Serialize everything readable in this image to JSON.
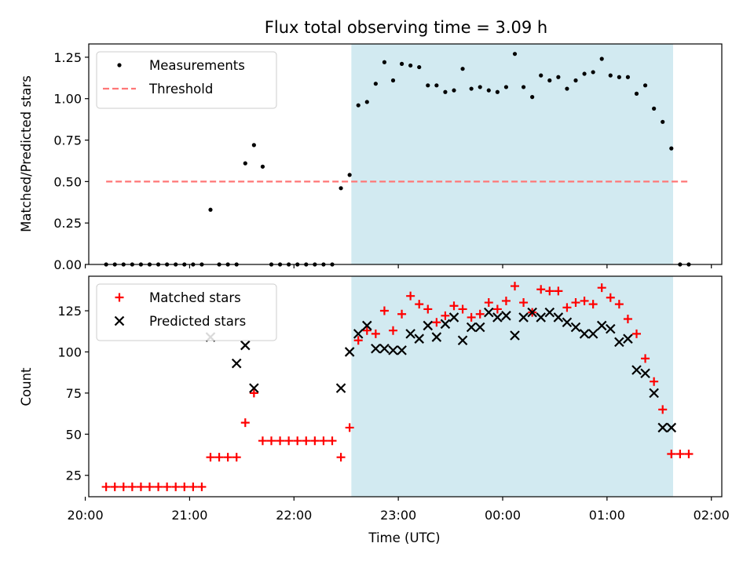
{
  "figure": {
    "title": "Flux total observing time = 3.09 h",
    "xlabel": "Time (UTC)",
    "span": {
      "start": "22:33",
      "end": "01:38",
      "color": "#add8e6"
    },
    "xlim": [
      "20:02",
      "02:06"
    ],
    "xticks": [
      "20:00",
      "21:00",
      "22:00",
      "23:00",
      "00:00",
      "01:00",
      "02:00"
    ]
  },
  "chart_data": [
    {
      "type": "scatter",
      "ylabel": "Matched/Predicted stars",
      "ylim": [
        0,
        1.33
      ],
      "yticks": [
        "0.00",
        "0.25",
        "0.50",
        "0.75",
        "1.00",
        "1.25"
      ],
      "legend": {
        "position": "top-left"
      },
      "threshold": {
        "name": "Threshold",
        "y": 0.5,
        "from": "20:12",
        "to": "01:48",
        "color": "#ff7777"
      },
      "series": [
        {
          "name": "Measurements",
          "marker": "dot",
          "color": "#000000",
          "x": [
            "20:12",
            "20:17",
            "20:22",
            "20:27",
            "20:32",
            "20:37",
            "20:42",
            "20:47",
            "20:52",
            "20:57",
            "21:02",
            "21:07",
            "21:12",
            "21:17",
            "21:22",
            "21:27",
            "21:32",
            "21:37",
            "21:42",
            "21:47",
            "21:52",
            "21:57",
            "22:02",
            "22:07",
            "22:12",
            "22:17",
            "22:22",
            "22:27",
            "22:32",
            "22:37",
            "22:42",
            "22:47",
            "22:52",
            "22:57",
            "23:02",
            "23:07",
            "23:12",
            "23:17",
            "23:22",
            "23:27",
            "23:32",
            "23:37",
            "23:42",
            "23:47",
            "23:52",
            "23:57",
            "00:02",
            "00:07",
            "00:12",
            "00:17",
            "00:22",
            "00:27",
            "00:32",
            "00:37",
            "00:42",
            "00:47",
            "00:52",
            "00:57",
            "01:02",
            "01:07",
            "01:12",
            "01:17",
            "01:22",
            "01:27",
            "01:32",
            "01:37",
            "01:42",
            "01:47"
          ],
          "y": [
            0,
            0,
            0,
            0,
            0,
            0,
            0,
            0,
            0,
            0,
            0,
            0,
            0.33,
            0,
            0,
            0,
            0.61,
            0.72,
            0.59,
            0,
            0,
            0,
            0,
            0,
            0,
            0,
            0,
            0.46,
            0.54,
            0.96,
            0.98,
            1.09,
            1.22,
            1.11,
            1.21,
            1.2,
            1.19,
            1.08,
            1.08,
            1.04,
            1.05,
            1.18,
            1.06,
            1.07,
            1.05,
            1.04,
            1.07,
            1.27,
            1.07,
            1.01,
            1.14,
            1.11,
            1.13,
            1.06,
            1.11,
            1.15,
            1.16,
            1.24,
            1.14,
            1.13,
            1.13,
            1.03,
            1.08,
            0.94,
            0.86,
            0.7,
            0,
            0
          ]
        }
      ]
    },
    {
      "type": "scatter",
      "ylabel": "Count",
      "ylim": [
        12,
        146
      ],
      "yticks": [
        "25",
        "50",
        "75",
        "100",
        "125"
      ],
      "legend": {
        "position": "top-left"
      },
      "series": [
        {
          "name": "Matched stars",
          "marker": "plus",
          "color": "#ff0000",
          "x": [
            "20:12",
            "20:17",
            "20:22",
            "20:27",
            "20:32",
            "20:37",
            "20:42",
            "20:47",
            "20:52",
            "20:57",
            "21:02",
            "21:07",
            "21:12",
            "21:17",
            "21:22",
            "21:27",
            "21:32",
            "21:37",
            "21:42",
            "21:47",
            "21:52",
            "21:57",
            "22:02",
            "22:07",
            "22:12",
            "22:17",
            "22:22",
            "22:27",
            "22:32",
            "22:37",
            "22:42",
            "22:47",
            "22:52",
            "22:57",
            "23:02",
            "23:07",
            "23:12",
            "23:17",
            "23:22",
            "23:27",
            "23:32",
            "23:37",
            "23:42",
            "23:47",
            "23:52",
            "23:57",
            "00:02",
            "00:07",
            "00:12",
            "00:17",
            "00:22",
            "00:27",
            "00:32",
            "00:37",
            "00:42",
            "00:47",
            "00:52",
            "00:57",
            "01:02",
            "01:07",
            "01:12",
            "01:17",
            "01:22",
            "01:27",
            "01:32",
            "01:37",
            "01:42",
            "01:47"
          ],
          "y": [
            18,
            18,
            18,
            18,
            18,
            18,
            18,
            18,
            18,
            18,
            18,
            18,
            36,
            36,
            36,
            36,
            57,
            75,
            46,
            46,
            46,
            46,
            46,
            46,
            46,
            46,
            46,
            36,
            54,
            107,
            113,
            111,
            125,
            113,
            123,
            134,
            129,
            126,
            118,
            122,
            128,
            126,
            121,
            123,
            130,
            126,
            131,
            140,
            130,
            124,
            138,
            137,
            137,
            127,
            130,
            131,
            129,
            139,
            133,
            129,
            120,
            111,
            96,
            82,
            65,
            38,
            38,
            38
          ]
        },
        {
          "name": "Predicted stars",
          "marker": "x",
          "color": "#000000",
          "x": [
            "21:12",
            "21:27",
            "21:32",
            "21:37",
            "22:27",
            "22:32",
            "22:37",
            "22:42",
            "22:47",
            "22:52",
            "22:57",
            "23:02",
            "23:07",
            "23:12",
            "23:17",
            "23:22",
            "23:27",
            "23:32",
            "23:37",
            "23:42",
            "23:47",
            "23:52",
            "23:57",
            "00:02",
            "00:07",
            "00:12",
            "00:17",
            "00:22",
            "00:27",
            "00:32",
            "00:37",
            "00:42",
            "00:47",
            "00:52",
            "00:57",
            "01:02",
            "01:07",
            "01:12",
            "01:17",
            "01:22",
            "01:27",
            "01:32",
            "01:37"
          ],
          "y": [
            109,
            93,
            104,
            78,
            78,
            100,
            111,
            116,
            102,
            102,
            101,
            101,
            111,
            108,
            116,
            109,
            117,
            121,
            107,
            115,
            115,
            124,
            121,
            122,
            110,
            121,
            124,
            121,
            124,
            121,
            118,
            115,
            111,
            111,
            116,
            114,
            106,
            108,
            89,
            87,
            75,
            54,
            54
          ]
        }
      ]
    }
  ]
}
